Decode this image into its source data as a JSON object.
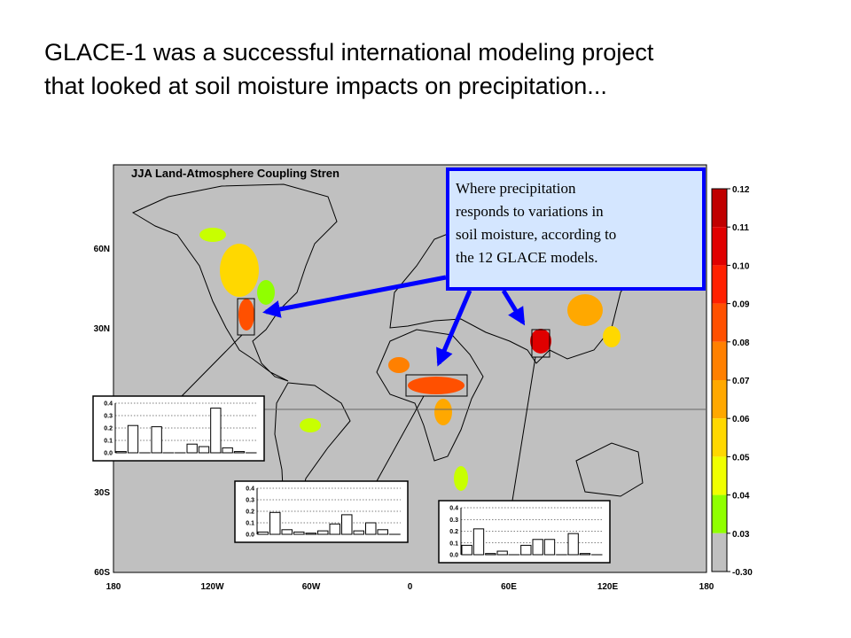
{
  "slide": {
    "title_lines": [
      "GLACE-1 was a successful international modeling project",
      "that looked at soil moisture impacts on precipitation..."
    ]
  },
  "map": {
    "title": "JJA Land-Atmosphere Coupling Stren",
    "lat_labels": [
      "60N",
      "30N",
      "30S",
      "60S"
    ],
    "lon_labels": [
      "180",
      "120W",
      "60W",
      "0",
      "60E",
      "120E",
      "180"
    ],
    "colorbar": {
      "ticks": [
        0.12,
        0.11,
        {
          "value": 0.1,
          "label": "0.10"
        },
        0.09,
        0.08,
        0.07,
        0.06,
        0.05,
        0.04,
        0.03,
        {
          "value": -0.3,
          "label": "-0.30"
        }
      ],
      "colors": [
        "#c00000",
        "#e00000",
        "#ff2000",
        "#ff5000",
        "#ff8000",
        "#ffa800",
        "#ffd800",
        "#f0ff00",
        "#90ff00",
        "#c0c0c0"
      ]
    }
  },
  "callout": {
    "lines": [
      "Where precipitation",
      "responds to variations in",
      "soil moisture, according to",
      "the 12 GLACE models."
    ]
  },
  "insets": [
    {
      "ylim": [
        0,
        0.4
      ],
      "yticks": [
        0.4,
        0.3,
        0.2,
        0.1,
        {
          "value": 0,
          "label": "0.0"
        }
      ],
      "values": [
        0.01,
        0.22,
        0,
        0.21,
        0,
        0,
        0.07,
        0.05,
        0.36,
        0.04,
        0.01,
        0
      ]
    },
    {
      "ylim": [
        0,
        0.4
      ],
      "yticks": [
        0.4,
        0.3,
        0.2,
        0.1,
        {
          "value": 0,
          "label": "0.0"
        }
      ],
      "values": [
        0.02,
        0.19,
        0.04,
        0.02,
        0.01,
        0.03,
        0.09,
        0.17,
        0.03,
        0.1,
        0.04,
        0
      ]
    },
    {
      "ylim": [
        0,
        0.4
      ],
      "yticks": [
        0.4,
        0.3,
        0.2,
        0.1,
        {
          "value": 0,
          "label": "0.0"
        }
      ],
      "values": [
        0.08,
        0.22,
        0.01,
        0.03,
        0,
        0.08,
        0.13,
        0.13,
        0,
        0.18,
        0.01,
        0
      ]
    }
  ]
}
